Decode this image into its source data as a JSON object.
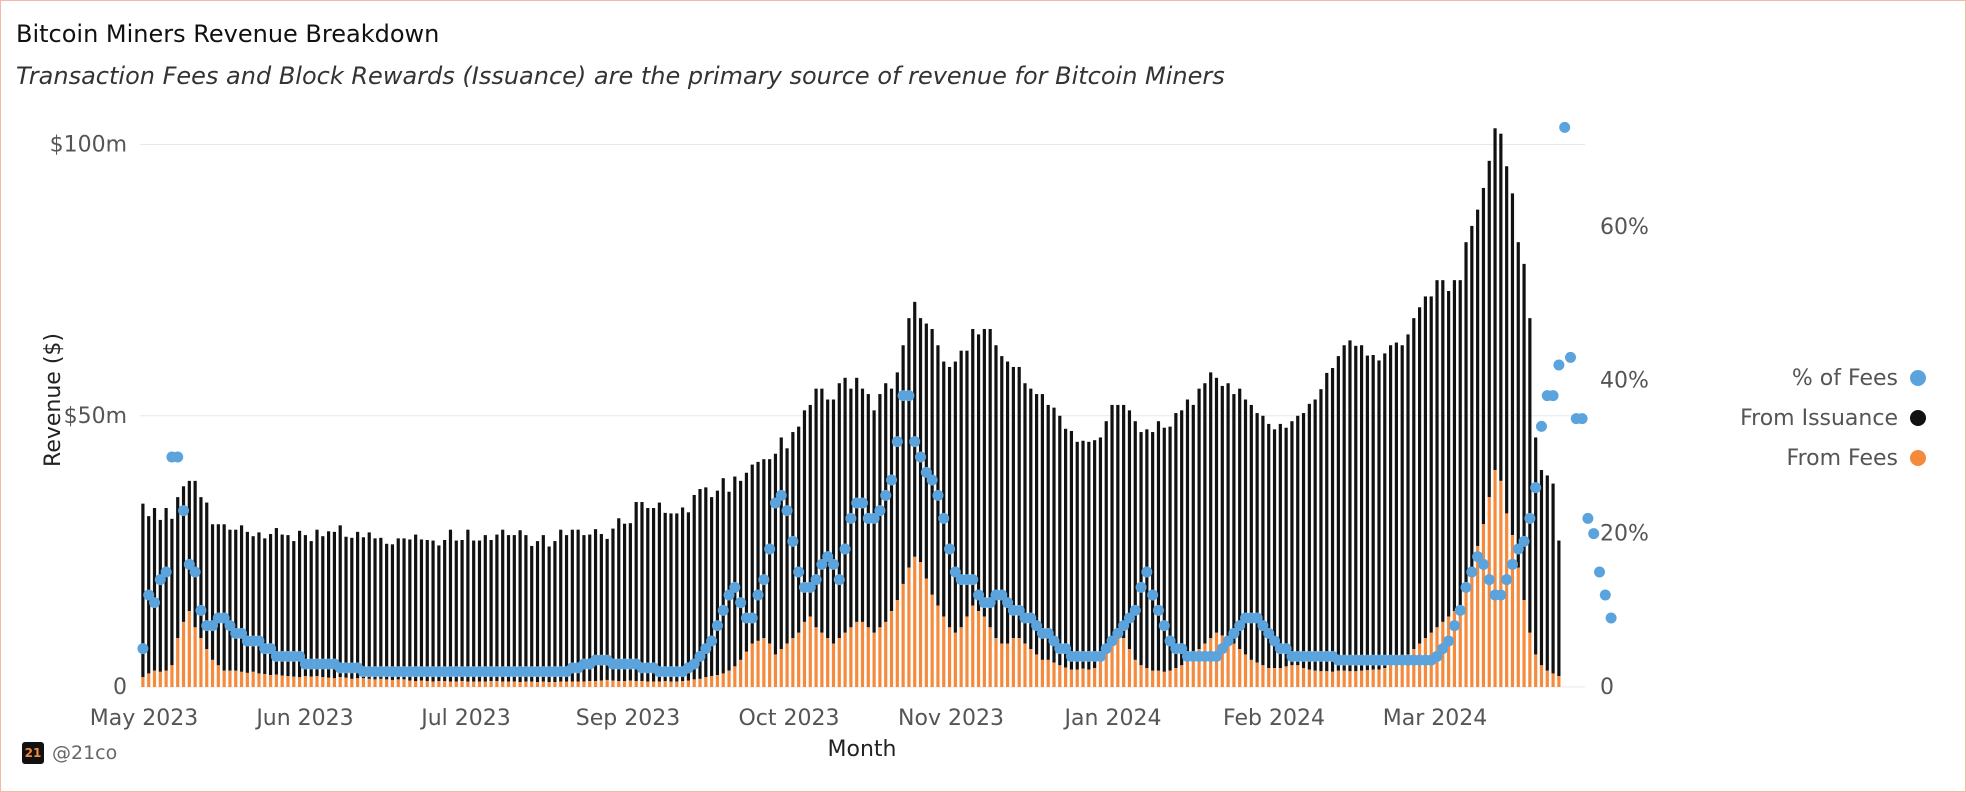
{
  "title": "Bitcoin Miners Revenue Breakdown",
  "subtitle": "Transaction Fees and Block Rewards (Issuance) are the primary source of revenue for Bitcoin Miners",
  "footer": {
    "logo_text": "21",
    "handle": "@21co"
  },
  "colors": {
    "issuance": "#111111",
    "fees": "#f58a3c",
    "fee_pct": "#5ba3dc",
    "grid": "#e8e8e8"
  },
  "legend": [
    {
      "label": "% of Fees",
      "color": "#5ba3dc"
    },
    {
      "label": "From Issuance",
      "color": "#111111"
    },
    {
      "label": "From Fees",
      "color": "#f58a3c"
    }
  ],
  "chart_data": {
    "type": "bar",
    "stacked": true,
    "title": "Bitcoin Miners Revenue Breakdown",
    "xlabel": "Month",
    "ylabel": "Revenue ($)",
    "x_ticks": [
      "May 2023",
      "Jun 2023",
      "Jul 2023",
      "Sep 2023",
      "Oct 2023",
      "Nov 2023",
      "Jan 2024",
      "Feb 2024",
      "Mar 2024"
    ],
    "y_left": {
      "ticks": [
        "0",
        "$50m",
        "$100m"
      ],
      "tick_values": [
        0,
        50,
        100
      ],
      "unit": "millions USD",
      "range": [
        0,
        106
      ]
    },
    "y_right": {
      "ticks": [
        "0",
        "20%",
        "40%",
        "60%"
      ],
      "tick_values": [
        0,
        20,
        40,
        60
      ],
      "unit": "percent",
      "range": [
        0,
        75
      ]
    },
    "daily_x_range": [
      "2023-05-01",
      "2024-04-30"
    ],
    "series": [
      {
        "name": "From Issuance",
        "axis": "left",
        "values": [
          32,
          29,
          30,
          28,
          30,
          27,
          26,
          25,
          24,
          27,
          26,
          27,
          25,
          26,
          27,
          26,
          26,
          27,
          26,
          25,
          26,
          25,
          26,
          27,
          26,
          26,
          25,
          27,
          26,
          25,
          27,
          26,
          27,
          27,
          28,
          26,
          26,
          27,
          26,
          27,
          26,
          26,
          25,
          25,
          26,
          26,
          26,
          27,
          26,
          26,
          26,
          25,
          26,
          28,
          26,
          26,
          28,
          26,
          26,
          27,
          26,
          27,
          28,
          27,
          27,
          28,
          27,
          25,
          26,
          27,
          25,
          26,
          28,
          27,
          28,
          28,
          27,
          27,
          28,
          27,
          26,
          28,
          30,
          29,
          29,
          33,
          33,
          32,
          32,
          33,
          31,
          31,
          31,
          32,
          31,
          34,
          35,
          35,
          33,
          34,
          36,
          33,
          35,
          33,
          33,
          33,
          33,
          33,
          34,
          37,
          39,
          36,
          38,
          38,
          39,
          39,
          44,
          45,
          44,
          45,
          47,
          47,
          44,
          45,
          43,
          43,
          41,
          43,
          44,
          41,
          42,
          44,
          46,
          47,
          45,
          47,
          49,
          48,
          47,
          48,
          50,
          51,
          49,
          51,
          51,
          53,
          55,
          54,
          53,
          52,
          50,
          50,
          48,
          48,
          48,
          49,
          47,
          47,
          46,
          44,
          44,
          42,
          42,
          42,
          42,
          41,
          42,
          43,
          42,
          43,
          44,
          44,
          43,
          44,
          44,
          46,
          45,
          45,
          47,
          47,
          48,
          46,
          48,
          48,
          49,
          47,
          46,
          47,
          46,
          48,
          47,
          47,
          46,
          46,
          45,
          44,
          45,
          44,
          45,
          46,
          47,
          49,
          50,
          52,
          55,
          56,
          58,
          60,
          61,
          60,
          60,
          58,
          58,
          57,
          58,
          59,
          59,
          58,
          59,
          61,
          62,
          63,
          62,
          64,
          63,
          60,
          61,
          60,
          64,
          63,
          62,
          62,
          62,
          63,
          64,
          64,
          63,
          60,
          62,
          58,
          40,
          36,
          36,
          35,
          25,
          25,
          19,
          15,
          10
        ],
        "note": "daily values in $m"
      },
      {
        "name": "From Fees",
        "axis": "left",
        "values": [
          1.8,
          2.5,
          3,
          2.8,
          3,
          4,
          9,
          12,
          14,
          11,
          9,
          7,
          5,
          4,
          3,
          3,
          3,
          2.8,
          2.6,
          2.8,
          2.5,
          2.4,
          2.2,
          2.3,
          2.1,
          2,
          1.9,
          1.8,
          2,
          1.9,
          2,
          1.8,
          1.7,
          1.6,
          1.8,
          1.7,
          1.5,
          1.6,
          1.6,
          1.5,
          1.4,
          1.5,
          1.4,
          1.3,
          1.4,
          1.4,
          1.2,
          1.1,
          1.2,
          1.1,
          1,
          1.1,
          1.1,
          1,
          1,
          1.1,
          1,
          1,
          1,
          1,
          1.1,
          1.1,
          1,
          1,
          1,
          0.9,
          1,
          1,
          0.9,
          1,
          0.9,
          0.9,
          1,
          1,
          1,
          1,
          1,
          1.1,
          1.1,
          1.2,
          1.3,
          1.2,
          1.1,
          1.1,
          1.2,
          1.1,
          1.1,
          1,
          1,
          1,
          1.1,
          1,
          1,
          1.1,
          1.2,
          1.4,
          1.5,
          1.8,
          2,
          2.2,
          2.5,
          3,
          3.8,
          5,
          6.5,
          8,
          8.5,
          9,
          8,
          6,
          7,
          8,
          9,
          10,
          12,
          13,
          11,
          10,
          9,
          8,
          9,
          10,
          11,
          12,
          12,
          11,
          10,
          11,
          12,
          14,
          16,
          19,
          22,
          24,
          23,
          20,
          17,
          15,
          13,
          11,
          10,
          11,
          13,
          15,
          14,
          13,
          11,
          9,
          8,
          8,
          9,
          9,
          8,
          7,
          6,
          5,
          5,
          4.5,
          4,
          3.6,
          3.2,
          3.2,
          3.4,
          3.2,
          3.5,
          5,
          7,
          9,
          10,
          9,
          7,
          5,
          4,
          3.5,
          3,
          3,
          2.8,
          3,
          3.5,
          4,
          5,
          6,
          7,
          8,
          9,
          10,
          9.5,
          9,
          8,
          7,
          6,
          5,
          4.5,
          4,
          3.5,
          3.5,
          3.5,
          3.8,
          4,
          4,
          3.5,
          3.2,
          3,
          2.9,
          2.9,
          2.8,
          3,
          3,
          2.9,
          2.9,
          3,
          3.1,
          3.2,
          3.2,
          3.5,
          4,
          4.5,
          5,
          6,
          7,
          8,
          9,
          10,
          11,
          12,
          13,
          14,
          15,
          18,
          22,
          26,
          30,
          35,
          40,
          38,
          32,
          28,
          22,
          16,
          10,
          6,
          4,
          3,
          2.5,
          2
        ],
        "note": "daily values in $m (peak ~80 on 2024-04-20, halving day)"
      },
      {
        "name": "% of Fees",
        "axis": "right",
        "values": [
          5,
          12,
          11,
          14,
          15,
          30,
          30,
          23,
          16,
          15,
          10,
          8,
          8,
          9,
          9,
          8,
          7,
          7,
          6,
          6,
          6,
          5,
          5,
          4,
          4,
          4,
          4,
          4,
          3,
          3,
          3,
          3,
          3,
          3,
          2.5,
          2.5,
          2.5,
          2.5,
          2,
          2,
          2,
          2,
          2,
          2,
          2,
          2,
          2,
          2,
          2,
          2,
          2,
          2,
          2,
          2,
          2,
          2,
          2,
          2,
          2,
          2,
          2,
          2,
          2,
          2,
          2,
          2,
          2,
          2,
          2,
          2,
          2,
          2,
          2,
          2,
          2.5,
          2.5,
          3,
          3,
          3.5,
          3.5,
          3.5,
          3,
          3,
          3,
          3,
          3,
          2.5,
          2.5,
          2.5,
          2,
          2,
          2,
          2,
          2,
          2.5,
          3,
          4,
          5,
          6,
          8,
          10,
          12,
          13,
          11,
          9,
          9,
          12,
          14,
          18,
          24,
          25,
          23,
          19,
          15,
          13,
          13,
          14,
          16,
          17,
          16,
          14,
          18,
          22,
          24,
          24,
          22,
          22,
          23,
          25,
          27,
          32,
          38,
          38,
          32,
          30,
          28,
          27,
          25,
          22,
          18,
          15,
          14,
          14,
          14,
          12,
          11,
          11,
          12,
          12,
          11,
          10,
          10,
          9,
          9,
          8,
          7,
          7,
          6,
          5,
          5,
          4,
          4,
          4,
          4,
          4,
          4,
          5,
          6,
          7,
          8,
          9,
          10,
          13,
          15,
          12,
          10,
          8,
          6,
          5,
          5,
          4,
          4,
          4,
          4,
          4,
          4,
          5,
          6,
          7,
          8,
          9,
          9,
          9,
          8,
          7,
          6,
          5,
          5,
          4,
          4,
          4,
          4,
          4,
          4,
          4,
          4,
          3.5,
          3.5,
          3.5,
          3.5,
          3.5,
          3.5,
          3.5,
          3.5,
          3.5,
          3.5,
          3.5,
          3.5,
          3.5,
          3.5,
          3.5,
          3.5,
          3.5,
          4,
          5,
          6,
          8,
          10,
          13,
          15,
          17,
          16,
          14,
          12,
          12,
          14,
          16,
          18,
          19,
          22,
          26,
          34,
          38,
          38,
          42,
          73,
          43,
          35,
          35,
          22,
          20,
          15,
          12,
          9
        ],
        "note": "daily values in percent"
      }
    ]
  }
}
